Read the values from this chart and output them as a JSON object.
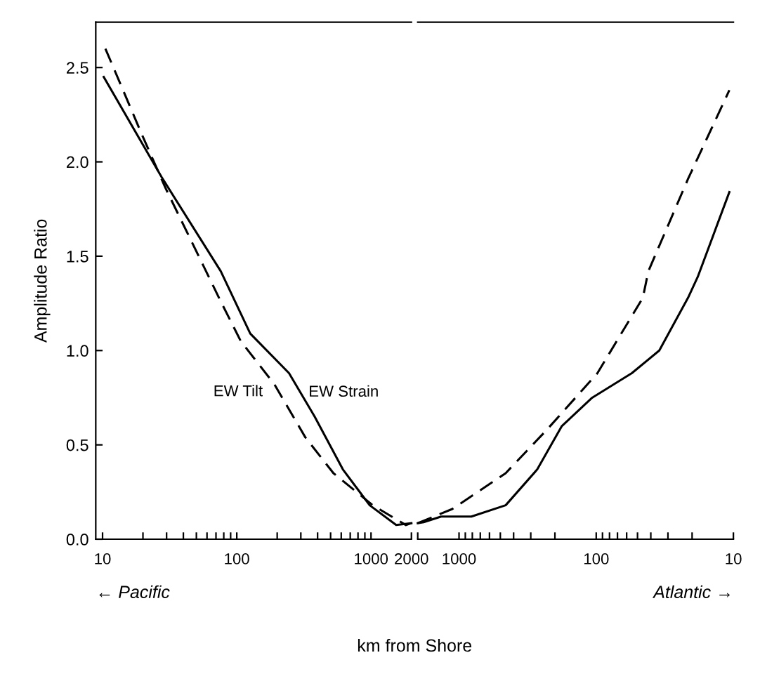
{
  "chart_data": [
    {
      "type": "line",
      "xlabel": "km from Shore",
      "ylabel": "Amplitude Ratio",
      "annotations": [
        "← Pacific"
      ],
      "log": "x",
      "series": [
        {
          "name": "EW Strain",
          "color": "#000000",
          "line_style": "solid",
          "x": [
            10.2,
            27.5,
            76,
            126,
            245,
            380,
            617,
            977,
            1540,
            2000
          ],
          "values": [
            2.45,
            1.92,
            1.42,
            1.09,
            0.88,
            0.65,
            0.37,
            0.18,
            0.075,
            0.085
          ]
        },
        {
          "name": "EW Tilt",
          "color": "#000000",
          "line_style": "dashed",
          "x": [
            10.5,
            19.5,
            29.5,
            76,
            107,
            191,
            324,
            525,
            1030,
            1820,
            2000
          ],
          "values": [
            2.6,
            2.15,
            1.86,
            1.26,
            1.05,
            0.82,
            0.54,
            0.35,
            0.18,
            0.075,
            0.085
          ]
        }
      ],
      "xlim": [
        8.9,
        2000
      ],
      "ylim": [
        0,
        2.74
      ],
      "xticks": [
        10,
        {
          "value": 20,
          "label": null
        },
        {
          "value": 30,
          "label": null
        },
        {
          "value": 40,
          "label": null
        },
        {
          "value": 50,
          "label": null
        },
        {
          "value": 60,
          "label": null
        },
        {
          "value": 70,
          "label": null
        },
        {
          "value": 80,
          "label": null
        },
        {
          "value": 90,
          "label": null
        },
        100,
        {
          "value": 200,
          "label": null
        },
        {
          "value": 300,
          "label": null
        },
        {
          "value": 400,
          "label": null
        },
        {
          "value": 500,
          "label": null
        },
        {
          "value": 600,
          "label": null
        },
        {
          "value": 700,
          "label": null
        },
        {
          "value": 800,
          "label": null
        },
        {
          "value": 900,
          "label": null
        },
        1000,
        2000
      ],
      "yticks": [
        {
          "value": 0,
          "label": "0.0"
        },
        {
          "value": 0.5,
          "label": "0.5"
        },
        {
          "value": 1.0,
          "label": "1.0"
        },
        {
          "value": 1.5,
          "label": "1.5"
        },
        {
          "value": 2.0,
          "label": "2.0"
        },
        {
          "value": 2.5,
          "label": "2.5"
        }
      ],
      "grid": false,
      "legend": false
    },
    {
      "type": "line",
      "annotations": [
        "Atlantic →"
      ],
      "log": "x",
      "tick_labels": "x",
      "series": [
        {
          "color": "#000000",
          "line_style": "solid",
          "x": [
            2000,
            1810,
            1350,
            813,
            457,
            269,
            178,
            107,
            55,
            34.7,
            21.4,
            18.2,
            10.7
          ],
          "values": [
            0.085,
            0.09,
            0.12,
            0.12,
            0.18,
            0.37,
            0.6,
            0.75,
            0.88,
            1.0,
            1.28,
            1.39,
            1.84
          ]
        },
        {
          "color": "#000000",
          "line_style": "dashed",
          "x": [
            2000,
            1120,
            457,
            229,
            98,
            45.7,
            41.7,
            21.4,
            10.7
          ],
          "values": [
            0.085,
            0.16,
            0.35,
            0.58,
            0.88,
            1.28,
            1.42,
            1.91,
            2.38
          ]
        }
      ],
      "xlim": [
        2000,
        10
      ],
      "ylim": [
        0,
        2.74
      ],
      "xticks": [
        {
          "value": 2000,
          "label": null
        },
        1000,
        {
          "value": 900,
          "label": null
        },
        {
          "value": 800,
          "label": null
        },
        {
          "value": 700,
          "label": null
        },
        {
          "value": 600,
          "label": null
        },
        {
          "value": 500,
          "label": null
        },
        {
          "value": 400,
          "label": null
        },
        {
          "value": 300,
          "label": null
        },
        {
          "value": 200,
          "label": null
        },
        100,
        {
          "value": 90,
          "label": null
        },
        {
          "value": 80,
          "label": null
        },
        {
          "value": 70,
          "label": null
        },
        {
          "value": 60,
          "label": null
        },
        {
          "value": 50,
          "label": null
        },
        {
          "value": 40,
          "label": null
        },
        {
          "value": 30,
          "label": null
        },
        {
          "value": 20,
          "label": null
        },
        10
      ],
      "grid": false,
      "legend": false
    }
  ]
}
